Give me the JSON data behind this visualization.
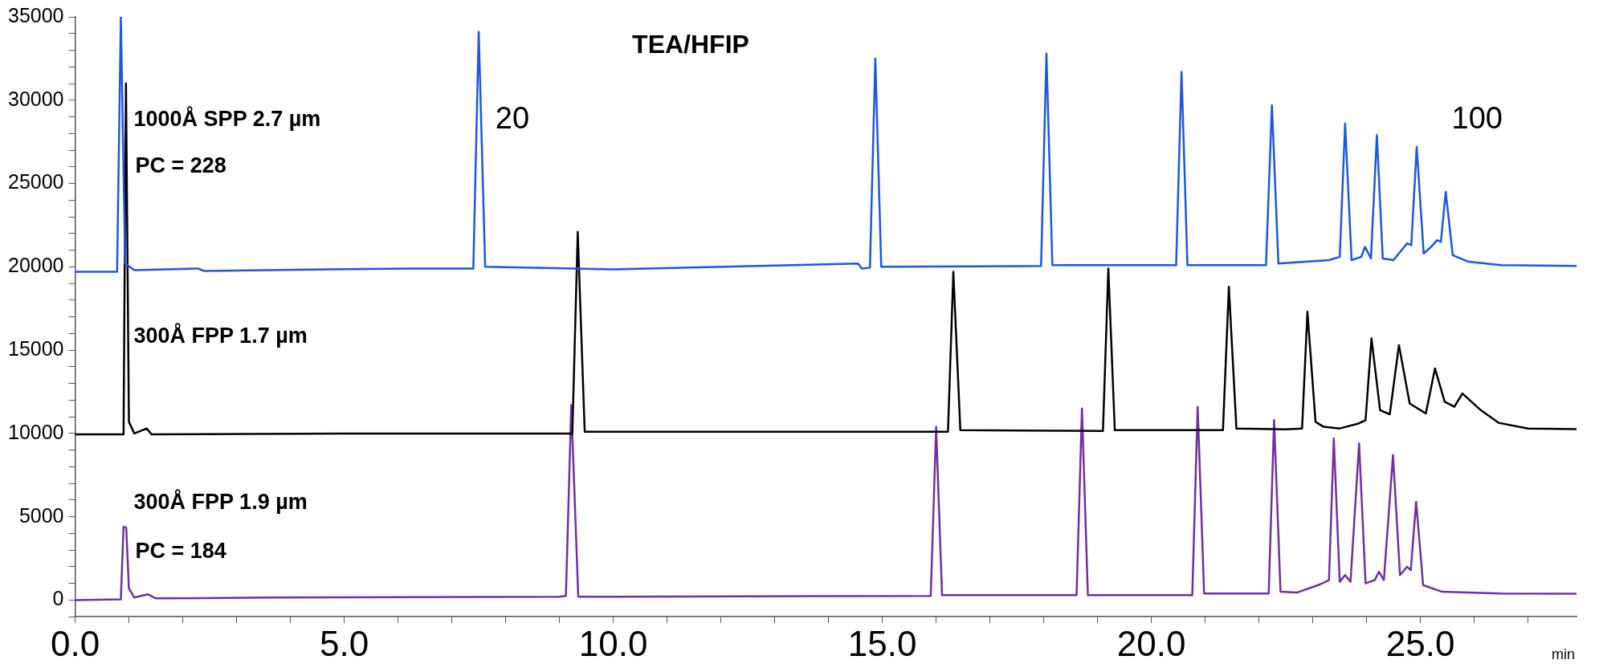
{
  "chart_data": {
    "type": "line",
    "title": "TEA/HFIP",
    "xlabel": "min",
    "xlim": [
      0,
      27.9
    ],
    "ylim": [
      -1000,
      35000
    ],
    "xticks": [
      {
        "value": 0,
        "label": "0.0"
      },
      {
        "value": 1,
        "label": null
      },
      {
        "value": 2,
        "label": null
      },
      {
        "value": 3,
        "label": null
      },
      {
        "value": 4,
        "label": null
      },
      {
        "value": 5,
        "label": "5.0"
      },
      {
        "value": 6,
        "label": null
      },
      {
        "value": 7,
        "label": null
      },
      {
        "value": 8,
        "label": null
      },
      {
        "value": 9,
        "label": null
      },
      {
        "value": 10,
        "label": "10.0"
      },
      {
        "value": 11,
        "label": null
      },
      {
        "value": 12,
        "label": null
      },
      {
        "value": 13,
        "label": null
      },
      {
        "value": 14,
        "label": null
      },
      {
        "value": 15,
        "label": "15.0"
      },
      {
        "value": 16,
        "label": null
      },
      {
        "value": 17,
        "label": null
      },
      {
        "value": 18,
        "label": null
      },
      {
        "value": 19,
        "label": null
      },
      {
        "value": 20,
        "label": "20.0"
      },
      {
        "value": 21,
        "label": null
      },
      {
        "value": 22,
        "label": null
      },
      {
        "value": 23,
        "label": null
      },
      {
        "value": 24,
        "label": null
      },
      {
        "value": 25,
        "label": "25.0"
      },
      {
        "value": 26,
        "label": null
      },
      {
        "value": 27,
        "label": null
      }
    ],
    "yticks": [
      {
        "value": -1000,
        "label": null
      },
      0,
      {
        "value": 1000,
        "label": null
      },
      {
        "value": 2000,
        "label": null
      },
      {
        "value": 3000,
        "label": null
      },
      {
        "value": 4000,
        "label": null
      },
      5000,
      {
        "value": 6000,
        "label": null
      },
      {
        "value": 7000,
        "label": null
      },
      {
        "value": 8000,
        "label": null
      },
      {
        "value": 9000,
        "label": null
      },
      10000,
      {
        "value": 11000,
        "label": null
      },
      {
        "value": 12000,
        "label": null
      },
      {
        "value": 13000,
        "label": null
      },
      {
        "value": 14000,
        "label": null
      },
      15000,
      {
        "value": 16000,
        "label": null
      },
      {
        "value": 17000,
        "label": null
      },
      {
        "value": 18000,
        "label": null
      },
      {
        "value": 19000,
        "label": null
      },
      20000,
      {
        "value": 21000,
        "label": null
      },
      {
        "value": 22000,
        "label": null
      },
      {
        "value": 23000,
        "label": null
      },
      {
        "value": 24000,
        "label": null
      },
      25000,
      {
        "value": 26000,
        "label": null
      },
      {
        "value": 27000,
        "label": null
      },
      {
        "value": 28000,
        "label": null
      },
      {
        "value": 29000,
        "label": null
      },
      30000,
      {
        "value": 31000,
        "label": null
      },
      {
        "value": 32000,
        "label": null
      },
      {
        "value": 33000,
        "label": null
      },
      {
        "value": 34000,
        "label": null
      },
      35000
    ],
    "legend": false,
    "marker": "none",
    "line_style": "solid",
    "annotations": [
      "PC = 228",
      "PC = 184",
      "20",
      "100"
    ],
    "series": [
      {
        "name": "1000Å SPP 2.7 µm",
        "color": "#1a56e8",
        "x": [
          0,
          0.78,
          0.85,
          0.93,
          1.1,
          2.28,
          2.4,
          4.7,
          6.5,
          7.4,
          7.5,
          7.62,
          10.0,
          14.55,
          14.62,
          14.77,
          14.87,
          14.98,
          17.95,
          18.05,
          18.16,
          20.46,
          20.56,
          20.67,
          22.13,
          22.24,
          22.36,
          23.3,
          23.5,
          23.6,
          23.72,
          23.9,
          23.97,
          24.08,
          24.19,
          24.3,
          24.5,
          24.75,
          24.83,
          24.93,
          25.06,
          25.2,
          25.31,
          25.38,
          25.47,
          25.6,
          25.9,
          26.5,
          27.9
        ],
        "values": [
          19700,
          19700,
          35000,
          20200,
          19800,
          19900,
          19750,
          19850,
          19900,
          19900,
          34100,
          20000,
          19850,
          20200,
          19900,
          19950,
          32500,
          20000,
          20050,
          32800,
          20100,
          20100,
          31700,
          20100,
          20100,
          29700,
          20200,
          20400,
          20600,
          28600,
          20400,
          20600,
          21200,
          20500,
          27900,
          20500,
          20400,
          21400,
          21300,
          27200,
          20800,
          21200,
          21600,
          21500,
          24500,
          20700,
          20300,
          20100,
          20050
        ]
      },
      {
        "name": "300Å FPP 1.7 µm",
        "color": "#000000",
        "x": [
          0,
          0.9,
          0.945,
          1.0,
          1.1,
          1.33,
          1.42,
          5,
          9.24,
          9.34,
          9.47,
          16.22,
          16.32,
          16.45,
          19.1,
          19.2,
          19.32,
          21.33,
          21.44,
          21.58,
          22.5,
          22.8,
          22.9,
          23.05,
          23.2,
          23.5,
          23.85,
          23.98,
          24.09,
          24.25,
          24.43,
          24.6,
          24.8,
          25.1,
          25.27,
          25.45,
          25.63,
          25.78,
          26.12,
          26.45,
          27,
          27.9
        ],
        "values": [
          9950,
          9950,
          31000,
          10700,
          10000,
          10300,
          9950,
          10000,
          10000,
          22100,
          10100,
          10100,
          19700,
          10200,
          10150,
          19900,
          10200,
          10200,
          18800,
          10300,
          10250,
          10300,
          17300,
          10700,
          10400,
          10300,
          10600,
          10800,
          15700,
          11400,
          11150,
          15300,
          11800,
          11200,
          13900,
          11900,
          11600,
          12400,
          11400,
          10640,
          10300,
          10260
        ]
      },
      {
        "name": "300Å FPP 1.9 µm",
        "color": "#7030a0",
        "x": [
          0,
          0.85,
          0.9,
          0.95,
          1.0,
          1.1,
          1.35,
          1.5,
          3.6,
          9.0,
          9.12,
          9.22,
          9.35,
          15.9,
          16.0,
          16.11,
          18.61,
          18.71,
          18.82,
          20.76,
          20.86,
          20.98,
          22.18,
          22.28,
          22.4,
          22.7,
          23.1,
          23.3,
          23.39,
          23.5,
          23.6,
          23.7,
          23.86,
          23.98,
          24.15,
          24.23,
          24.32,
          24.49,
          24.62,
          24.75,
          24.82,
          24.92,
          25.05,
          25.4,
          26.5,
          27.9
        ],
        "values": [
          0,
          50,
          4400,
          4350,
          700,
          150,
          350,
          100,
          150,
          200,
          250,
          11700,
          200,
          250,
          10400,
          300,
          300,
          11500,
          300,
          300,
          11600,
          400,
          400,
          10800,
          500,
          450,
          900,
          1200,
          9700,
          1100,
          1500,
          1100,
          9400,
          1000,
          1200,
          1700,
          1200,
          8700,
          1500,
          2000,
          1800,
          5900,
          900,
          500,
          400,
          380
        ]
      }
    ]
  }
}
